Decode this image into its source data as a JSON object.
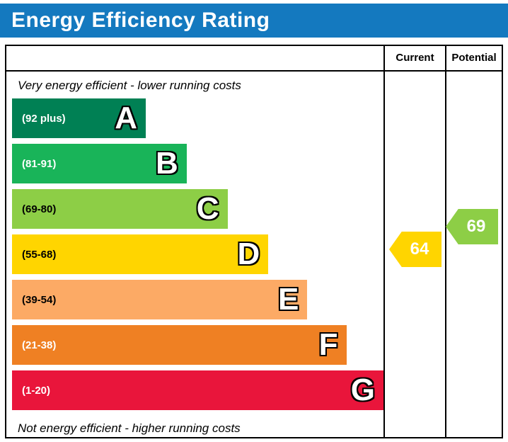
{
  "header": {
    "title": "Energy Efficiency Rating",
    "background": "#1479bf"
  },
  "columns": {
    "current": "Current",
    "potential": "Potential"
  },
  "notes": {
    "top": "Very energy efficient - lower running costs",
    "bottom": "Not energy efficient - higher running costs"
  },
  "bands": [
    {
      "letter": "A",
      "range": "(92 plus)",
      "color": "#008054"
    },
    {
      "letter": "B",
      "range": "(81-91)",
      "color": "#19b459"
    },
    {
      "letter": "C",
      "range": "(69-80)",
      "color": "#8dce46"
    },
    {
      "letter": "D",
      "range": "(55-68)",
      "color": "#ffd500"
    },
    {
      "letter": "E",
      "range": "(39-54)",
      "color": "#fcaa65"
    },
    {
      "letter": "F",
      "range": "(21-38)",
      "color": "#ef8023"
    },
    {
      "letter": "G",
      "range": "(1-20)",
      "color": "#e9153b"
    }
  ],
  "current": {
    "value": "64",
    "band": "D",
    "color": "#ffd500"
  },
  "potential": {
    "value": "69",
    "band": "C",
    "color": "#8dce46"
  },
  "chart_data": {
    "type": "bar",
    "title": "Energy Efficiency Rating",
    "categories": [
      "A",
      "B",
      "C",
      "D",
      "E",
      "F",
      "G"
    ],
    "band_ranges": [
      "92 plus",
      "81-91",
      "69-80",
      "55-68",
      "39-54",
      "21-38",
      "1-20"
    ],
    "band_colors": [
      "#008054",
      "#19b459",
      "#8dce46",
      "#ffd500",
      "#fcaa65",
      "#ef8023",
      "#e9153b"
    ],
    "bar_lengths_pct": [
      36,
      47,
      58,
      69,
      79.5,
      90,
      100
    ],
    "markers": [
      {
        "label": "Current",
        "value": 64,
        "band": "D",
        "color": "#ffd500"
      },
      {
        "label": "Potential",
        "value": 69,
        "band": "C",
        "color": "#8dce46"
      }
    ],
    "annotations": [
      "Very energy efficient - lower running costs",
      "Not energy efficient - higher running costs"
    ],
    "grid": false,
    "legend_position": "none"
  }
}
